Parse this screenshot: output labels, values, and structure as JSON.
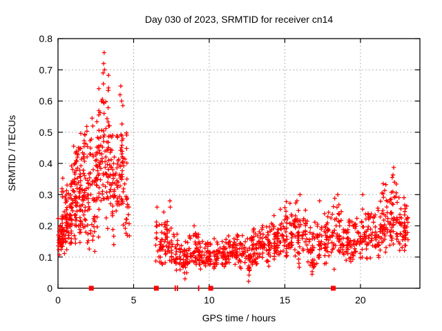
{
  "page": {
    "background": "#ffffff"
  },
  "chart_data": {
    "type": "scatter",
    "title": "Day 030 of 2023, SRMTID for receiver cn14",
    "xlabel": "GPS time / hours",
    "ylabel": "SRMTID / TECUs",
    "xlim": [
      0,
      23.93
    ],
    "ylim": [
      0,
      0.8
    ],
    "xticks": {
      "values": [
        0,
        5,
        10,
        15,
        20
      ],
      "labels": [
        "0",
        "5",
        "10",
        "15",
        "20"
      ]
    },
    "yticks": {
      "values": [
        0,
        0.1,
        0.2,
        0.3,
        0.4,
        0.5,
        0.6,
        0.7,
        0.8
      ],
      "labels": [
        "0",
        "0.1",
        "0.2",
        "0.3",
        "0.4",
        "0.5",
        "0.6",
        "0.7",
        "0.8"
      ]
    },
    "grid": {
      "x": [
        5,
        10,
        15,
        20
      ],
      "y": [
        0.1,
        0.2,
        0.3,
        0.4,
        0.5,
        0.6,
        0.7
      ],
      "style": "dashed",
      "on": true
    },
    "legend": "none",
    "marker": {
      "shape": "plus",
      "color": "#ff0000",
      "size": 6.4,
      "stroke": 1.3
    },
    "colors": {
      "axis": "#000000",
      "grid": "#b4b4b4",
      "text": "#000000",
      "background": "#ffffff"
    },
    "point_generation": {
      "note": "Dense scatter of ~1600 red '+' points estimated from pixels. Bins: [xStartHour, xEndHour, count, yMin, yMax, yMode] in TECUs.",
      "seed": 20230130,
      "column_jitter_probability": 0.35,
      "column_jitter_width": 0.06,
      "bins": [
        [
          0.0,
          0.3,
          40,
          0.1,
          0.24,
          0.15
        ],
        [
          0.25,
          0.6,
          38,
          0.1,
          0.37,
          0.16
        ],
        [
          0.55,
          0.9,
          36,
          0.1,
          0.4,
          0.2
        ],
        [
          0.85,
          1.2,
          40,
          0.11,
          0.47,
          0.25
        ],
        [
          1.15,
          1.5,
          42,
          0.12,
          0.53,
          0.3
        ],
        [
          1.45,
          1.8,
          40,
          0.12,
          0.55,
          0.32
        ],
        [
          1.75,
          2.1,
          36,
          0.1,
          0.58,
          0.3
        ],
        [
          2.05,
          2.45,
          30,
          0.1,
          0.56,
          0.26
        ],
        [
          2.4,
          2.75,
          32,
          0.12,
          0.62,
          0.33
        ],
        [
          2.7,
          3.05,
          36,
          0.14,
          0.74,
          0.42
        ],
        [
          3.0,
          3.35,
          36,
          0.14,
          0.72,
          0.46
        ],
        [
          3.3,
          3.65,
          30,
          0.12,
          0.56,
          0.34
        ],
        [
          3.6,
          3.95,
          28,
          0.13,
          0.5,
          0.3
        ],
        [
          3.9,
          4.25,
          30,
          0.14,
          0.63,
          0.36
        ],
        [
          4.2,
          4.55,
          24,
          0.14,
          0.6,
          0.3
        ],
        [
          4.5,
          4.75,
          14,
          0.13,
          0.38,
          0.2
        ],
        [
          6.45,
          6.9,
          30,
          0.07,
          0.27,
          0.14
        ],
        [
          6.9,
          7.5,
          36,
          0.06,
          0.28,
          0.12
        ],
        [
          7.5,
          8.1,
          36,
          0.05,
          0.18,
          0.1
        ],
        [
          8.1,
          8.7,
          36,
          0.03,
          0.17,
          0.09
        ],
        [
          8.7,
          9.3,
          36,
          0.05,
          0.2,
          0.1
        ],
        [
          9.3,
          9.9,
          36,
          0.05,
          0.16,
          0.09
        ],
        [
          9.9,
          10.5,
          36,
          0.05,
          0.18,
          0.1
        ],
        [
          10.5,
          11.1,
          36,
          0.06,
          0.16,
          0.1
        ],
        [
          11.1,
          11.7,
          38,
          0.06,
          0.18,
          0.11
        ],
        [
          11.7,
          12.3,
          40,
          0.05,
          0.19,
          0.12
        ],
        [
          12.3,
          12.9,
          40,
          0.02,
          0.18,
          0.1
        ],
        [
          12.9,
          13.5,
          40,
          0.05,
          0.21,
          0.11
        ],
        [
          13.5,
          14.1,
          40,
          0.06,
          0.22,
          0.12
        ],
        [
          14.1,
          14.7,
          40,
          0.08,
          0.25,
          0.14
        ],
        [
          14.7,
          15.3,
          40,
          0.08,
          0.28,
          0.16
        ],
        [
          15.3,
          15.9,
          42,
          0.08,
          0.3,
          0.17
        ],
        [
          15.9,
          16.5,
          40,
          0.06,
          0.28,
          0.15
        ],
        [
          16.5,
          17.1,
          36,
          0.04,
          0.22,
          0.12
        ],
        [
          17.1,
          17.7,
          36,
          0.06,
          0.26,
          0.13
        ],
        [
          17.7,
          18.3,
          36,
          0.05,
          0.28,
          0.14
        ],
        [
          18.3,
          18.9,
          40,
          0.08,
          0.3,
          0.16
        ],
        [
          18.9,
          19.5,
          36,
          0.07,
          0.25,
          0.14
        ],
        [
          19.5,
          20.1,
          36,
          0.08,
          0.26,
          0.15
        ],
        [
          20.1,
          20.7,
          36,
          0.06,
          0.3,
          0.16
        ],
        [
          20.7,
          21.3,
          36,
          0.09,
          0.28,
          0.16
        ],
        [
          21.3,
          21.9,
          40,
          0.1,
          0.34,
          0.18
        ],
        [
          21.9,
          22.5,
          44,
          0.1,
          0.38,
          0.2
        ],
        [
          22.5,
          23.0,
          40,
          0.08,
          0.31,
          0.18
        ],
        [
          23.0,
          23.15,
          10,
          0.1,
          0.27,
          0.17
        ]
      ],
      "extra_points": [
        [
          3.05,
          0.755
        ],
        [
          3.02,
          0.72
        ],
        [
          3.08,
          0.7
        ],
        [
          2.98,
          0.69
        ],
        [
          3.0,
          0.655
        ],
        [
          4.15,
          0.648
        ],
        [
          4.1,
          0.62
        ],
        [
          4.2,
          0.6
        ],
        [
          2.25,
          0.545
        ],
        [
          2.3,
          0.52
        ],
        [
          7.4,
          0.28
        ],
        [
          7.42,
          0.26
        ],
        [
          6.55,
          0.26
        ],
        [
          9.0,
          0.2
        ],
        [
          16.0,
          0.3
        ],
        [
          15.8,
          0.28
        ],
        [
          17.3,
          0.28
        ],
        [
          18.5,
          0.3
        ],
        [
          20.15,
          0.3
        ],
        [
          21.5,
          0.335
        ],
        [
          22.2,
          0.387
        ],
        [
          22.15,
          0.363
        ],
        [
          22.1,
          0.355
        ],
        [
          22.25,
          0.34
        ],
        [
          12.6,
          0.022
        ],
        [
          16.8,
          0.045
        ],
        [
          8.4,
          0.03
        ]
      ]
    },
    "baseline_markers": {
      "note": "red marks sitting on the y=0 axis line",
      "squares_x": [
        2.2,
        6.5,
        10.1,
        18.2
      ],
      "ticks_x": [
        7.75,
        7.9,
        9.3
      ]
    }
  }
}
